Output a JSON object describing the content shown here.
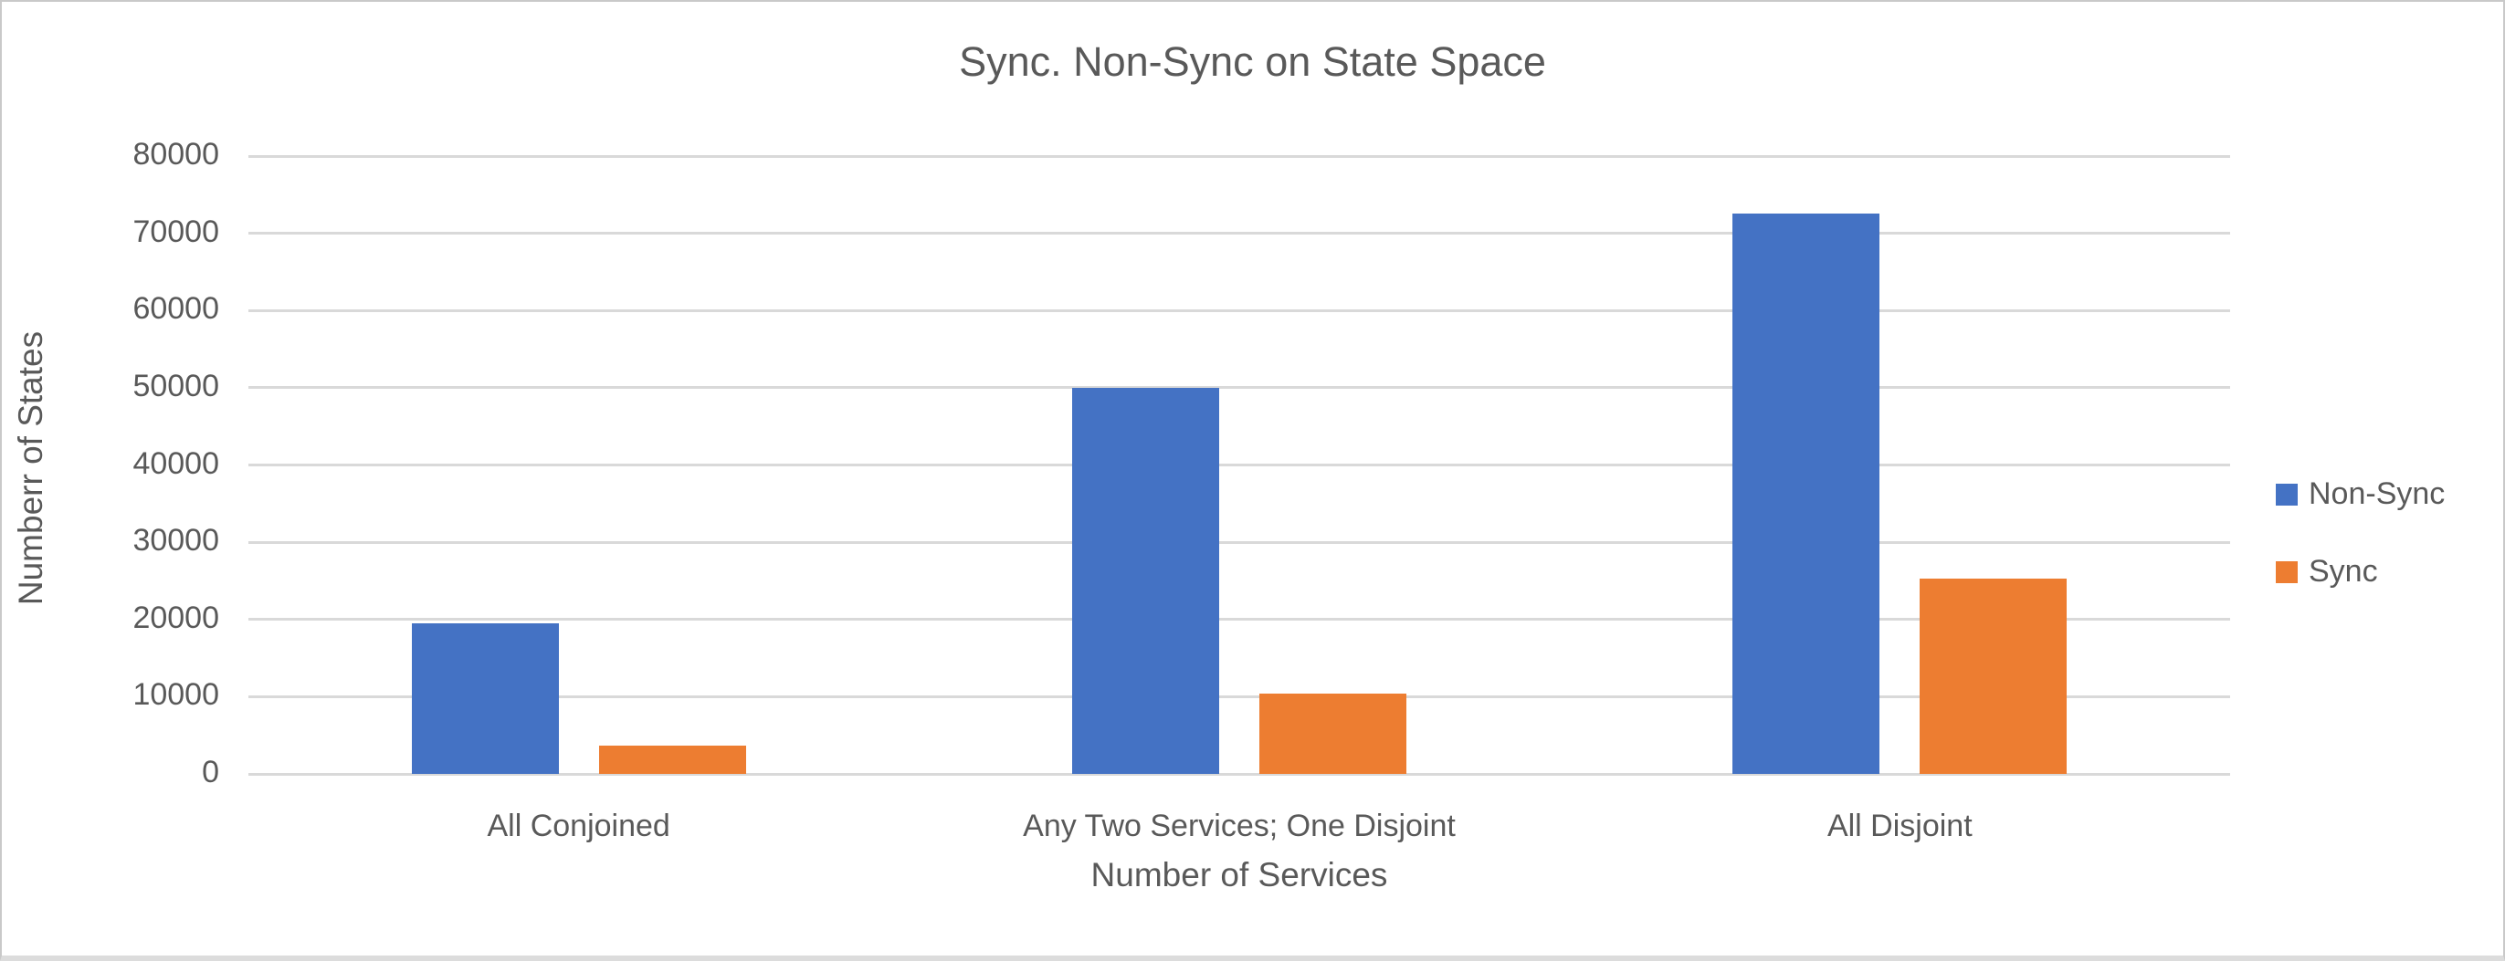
{
  "window": {
    "background": "#ffffff",
    "border_color": "#c9c9c9"
  },
  "style": {
    "text_color": "#595959",
    "gridline_color": "#d9d9d9",
    "axis_line_color": "#d9d9d9"
  },
  "chart_data": {
    "type": "bar",
    "title": "Sync. Non-Sync on State Space",
    "xlabel": "Number of Services",
    "ylabel": "Numberr of States",
    "categories": [
      "All Conjoined",
      "Any Two Services; One Disjoint",
      "All Disjoint"
    ],
    "series": [
      {
        "name": "Non-Sync",
        "color": "#4472C4",
        "values": [
          19500,
          50000,
          72500
        ]
      },
      {
        "name": "Sync",
        "color": "#ED7D31",
        "values": [
          3700,
          10400,
          25300
        ]
      }
    ],
    "ylim": [
      0,
      80000
    ],
    "ytick_step": 10000,
    "ytick_labels": [
      "0",
      "10000",
      "20000",
      "30000",
      "40000",
      "50000",
      "60000",
      "70000",
      "80000"
    ],
    "grid": true,
    "legend_position": "right"
  }
}
